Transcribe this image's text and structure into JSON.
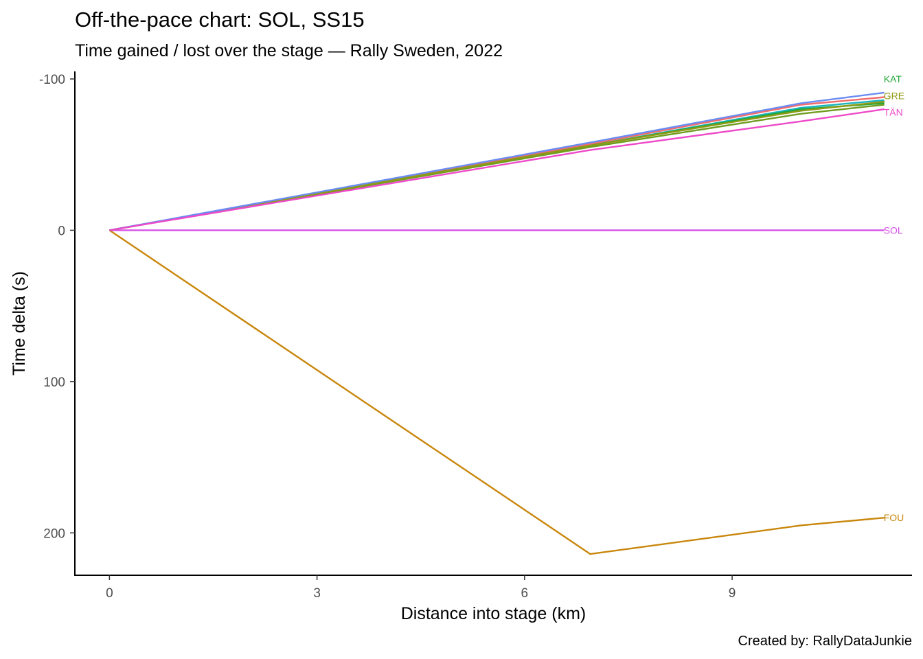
{
  "title": "Off-the-pace chart: SOL, SS15",
  "subtitle": "Time gained / lost over the stage — Rally Sweden, 2022",
  "caption": "Created by: RallyDataJunkie",
  "chart_data": {
    "type": "line",
    "xlabel": "Distance into stage (km)",
    "ylabel": "Time delta (s)",
    "xlim": [
      -0.5,
      11.6
    ],
    "ylim": [
      -105,
      228
    ],
    "y_reversed": true,
    "xticks": [
      0,
      3,
      6,
      9
    ],
    "yticks": [
      -100,
      0,
      100,
      200
    ],
    "grid": false,
    "legend": "none",
    "series": [
      {
        "name": "FOU",
        "color": "#c8860b",
        "x": [
          0,
          6.95,
          10.0,
          11.2
        ],
        "y": [
          0,
          214,
          195,
          190
        ]
      },
      {
        "name": "SOL",
        "color": "#d64fe6",
        "x": [
          0,
          6.95,
          10.0,
          11.2
        ],
        "y": [
          0,
          0,
          0,
          0
        ]
      },
      {
        "name": "",
        "color": "#f26b6b",
        "x": [
          0,
          6.95,
          10.0,
          11.2
        ],
        "y": [
          0,
          -57,
          -83,
          -88
        ]
      },
      {
        "name": "",
        "color": "#19b3bf",
        "x": [
          0,
          6.95,
          10.0,
          11.2
        ],
        "y": [
          0,
          -56,
          -81,
          -86
        ]
      },
      {
        "name": "",
        "color": "#6f9c1f",
        "x": [
          0,
          6.95,
          10.0,
          11.2
        ],
        "y": [
          0,
          -55,
          -77,
          -83
        ]
      },
      {
        "name": "KAT",
        "color": "#23a83a",
        "x": [
          0,
          6.95,
          10.0,
          11.2
        ],
        "y": [
          0,
          -56,
          -80,
          -84
        ]
      },
      {
        "name": "GRE",
        "color": "#8f9a14",
        "x": [
          0,
          6.95,
          10.0,
          11.2
        ],
        "y": [
          0,
          -56,
          -79,
          -85
        ]
      },
      {
        "name": "",
        "color": "#6a8cf2",
        "x": [
          0,
          6.95,
          10.0,
          11.2
        ],
        "y": [
          0,
          -58,
          -84,
          -91
        ]
      },
      {
        "name": "TÄN",
        "color": "#ee49c9",
        "x": [
          0,
          6.95,
          10.0,
          11.2
        ],
        "y": [
          0,
          -53,
          -72,
          -80
        ]
      }
    ],
    "labels": [
      {
        "text": "KAT",
        "color": "#23a83a",
        "x": 11.2,
        "y": -100
      },
      {
        "text": "GRE",
        "color": "#8f9a14",
        "x": 11.2,
        "y": -89
      },
      {
        "text": "TÄN",
        "color": "#ee49c9",
        "x": 11.2,
        "y": -78
      },
      {
        "text": "SOL",
        "color": "#d64fe6",
        "x": 11.2,
        "y": 0
      },
      {
        "text": "FOU",
        "color": "#c8860b",
        "x": 11.2,
        "y": 190
      }
    ]
  }
}
